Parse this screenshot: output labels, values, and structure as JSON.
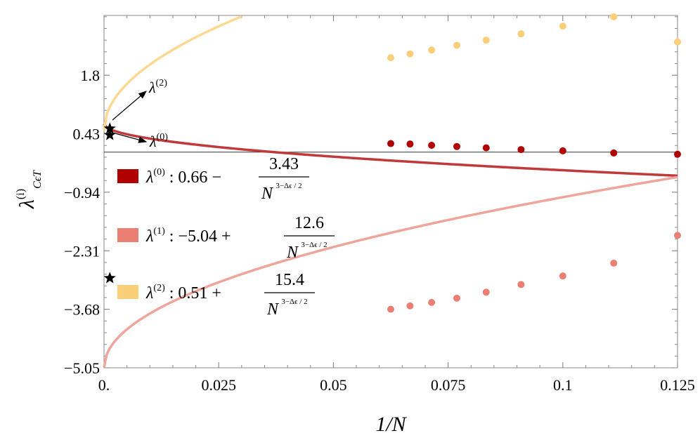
{
  "chart_data": {
    "type": "scatter",
    "xlabel": "1/N",
    "ylabel": "λ",
    "ylabel_sup": "(i)",
    "ylabel_sub": "CϵT",
    "xlim": [
      0,
      0.125
    ],
    "ylim": [
      -5.05,
      3.2
    ],
    "x_ticks": [
      {
        "value": 0,
        "label": "0."
      },
      {
        "value": 0.025,
        "label": "0.025"
      },
      {
        "value": 0.05,
        "label": "0.05"
      },
      {
        "value": 0.075,
        "label": "0.075"
      },
      {
        "value": 0.1,
        "label": "0.1"
      },
      {
        "value": 0.125,
        "label": "0.125"
      }
    ],
    "y_ticks": [
      {
        "value": 1.8,
        "label": "1.8"
      },
      {
        "value": 0.43,
        "label": "0.43"
      },
      {
        "value": -0.94,
        "label": "−0.94"
      },
      {
        "value": -2.31,
        "label": "−2.31"
      },
      {
        "value": -3.68,
        "label": "−3.68"
      },
      {
        "value": -5.05,
        "label": "−5.05"
      }
    ],
    "grid": false,
    "legend_position": "center-left",
    "fit_exponent": 0.5,
    "zero_line": true,
    "series": [
      {
        "key": "lambda0",
        "name": "λ",
        "name_sup": "(0)",
        "fit_constant": "0.66",
        "fit_sign": "−",
        "fit_coefficient": "3.43",
        "fit_denominator": "N",
        "fit_exponent_label": "3−Δϵ / 2",
        "a": 0.66,
        "b": -3.43,
        "color": "#b00000",
        "line_color": "#c0393b",
        "points": [
          {
            "x": 0.0625,
            "y": 0.2
          },
          {
            "x": 0.0667,
            "y": 0.19
          },
          {
            "x": 0.0714,
            "y": 0.16
          },
          {
            "x": 0.0769,
            "y": 0.13
          },
          {
            "x": 0.0833,
            "y": 0.1
          },
          {
            "x": 0.0909,
            "y": 0.06
          },
          {
            "x": 0.1,
            "y": 0.03
          },
          {
            "x": 0.1111,
            "y": -0.02
          },
          {
            "x": 0.125,
            "y": -0.05
          }
        ]
      },
      {
        "key": "lambda1",
        "name": "λ",
        "name_sup": "(1)",
        "fit_constant": "−5.04",
        "fit_sign": "+",
        "fit_coefficient": "12.6",
        "fit_denominator": "N",
        "fit_exponent_label": "3−Δϵ / 2",
        "a": -5.04,
        "b": 12.6,
        "color": "#ec7f74",
        "line_color": "#f0a59c",
        "points": [
          {
            "x": 0.0625,
            "y": -3.68
          },
          {
            "x": 0.0667,
            "y": -3.6
          },
          {
            "x": 0.0714,
            "y": -3.52
          },
          {
            "x": 0.0769,
            "y": -3.42
          },
          {
            "x": 0.0833,
            "y": -3.28
          },
          {
            "x": 0.0909,
            "y": -3.1
          },
          {
            "x": 0.1,
            "y": -2.9
          },
          {
            "x": 0.1111,
            "y": -2.6
          },
          {
            "x": 0.125,
            "y": -1.95
          }
        ]
      },
      {
        "key": "lambda2",
        "name": "λ",
        "name_sup": "(2)",
        "fit_constant": "0.51",
        "fit_sign": "+",
        "fit_coefficient": "15.4",
        "fit_denominator": "N",
        "fit_exponent_label": "3−Δϵ / 2",
        "a": 0.51,
        "b": 15.4,
        "color": "#fbce7a",
        "line_color": "#fbd993",
        "points": [
          {
            "x": 0.0625,
            "y": 2.21
          },
          {
            "x": 0.0667,
            "y": 2.3
          },
          {
            "x": 0.0714,
            "y": 2.39
          },
          {
            "x": 0.0769,
            "y": 2.5
          },
          {
            "x": 0.0833,
            "y": 2.62
          },
          {
            "x": 0.0909,
            "y": 2.77
          },
          {
            "x": 0.1,
            "y": 2.95
          },
          {
            "x": 0.1111,
            "y": 3.17
          },
          {
            "x": 0.125,
            "y": 2.58
          }
        ]
      }
    ],
    "star_points": [
      {
        "x": 0.0005,
        "y": 0.55
      },
      {
        "x": 0.0005,
        "y": 0.4
      },
      {
        "x": 0.0005,
        "y": -2.95
      }
    ],
    "annotations": [
      {
        "target": "lambda2",
        "text": "λ",
        "sup": "(2)"
      },
      {
        "target": "lambda0",
        "text": "λ",
        "sup": "(0)"
      }
    ]
  }
}
